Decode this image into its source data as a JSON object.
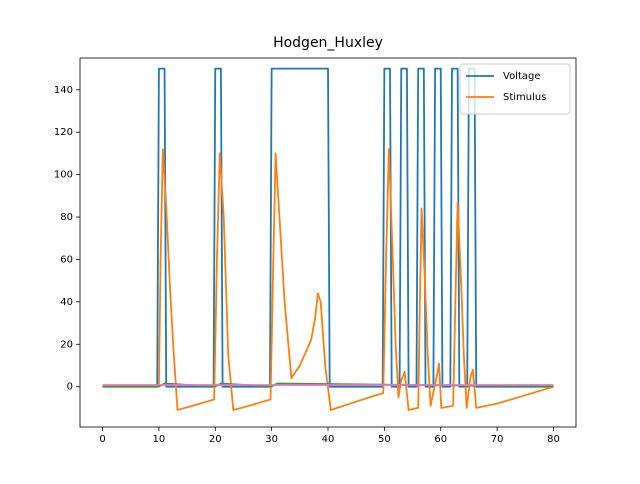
{
  "chart_data": {
    "type": "line",
    "title": "Hodgen_Huxley",
    "xlim": [
      -4,
      84
    ],
    "xticks": [
      0,
      10,
      20,
      30,
      40,
      50,
      60,
      70,
      80
    ],
    "ylim": [
      -19,
      155
    ],
    "yticks": [
      0,
      20,
      40,
      60,
      80,
      100,
      120,
      140
    ],
    "legend": "upper right",
    "series": [
      {
        "name": "Voltage",
        "color": "#1f77b4",
        "x": [
          0,
          9.7,
          10,
          11,
          11.3,
          19.7,
          20,
          21,
          21.3,
          29.7,
          30,
          40,
          40.3,
          49.7,
          50,
          51,
          51.3,
          52.7,
          53,
          54,
          54.3,
          55.7,
          56,
          57,
          57.3,
          58.7,
          59,
          60,
          60.3,
          61.7,
          62,
          63,
          63.3,
          64.7,
          65,
          66,
          66.3,
          80
        ],
        "values": [
          0,
          0,
          150,
          150,
          0,
          0,
          150,
          150,
          0,
          0,
          150,
          150,
          0,
          0,
          150,
          150,
          0,
          0,
          150,
          150,
          0,
          0,
          150,
          150,
          0,
          0,
          150,
          150,
          0,
          0,
          150,
          150,
          0,
          0,
          150,
          150,
          0,
          0
        ]
      },
      {
        "name": "Stimulus",
        "color": "#ff7f0e",
        "x": [
          0,
          10,
          10.3,
          10.7,
          11.3,
          12,
          12.6,
          13.3,
          16,
          19.8,
          20.3,
          20.8,
          21.5,
          22.3,
          23.2,
          26,
          29.8,
          30.3,
          30.7,
          31.5,
          32.3,
          33.5,
          35,
          37,
          37.7,
          38.2,
          38.7,
          39.5,
          40.5,
          45,
          49.8,
          50.3,
          50.8,
          51.5,
          52,
          52.5,
          53,
          53.6,
          54.3,
          56,
          56.3,
          56.6,
          57.2,
          57.7,
          58.2,
          59.3,
          59.7,
          60.1,
          62.2,
          62.6,
          63,
          63.6,
          64.1,
          64.6,
          65.3,
          65.7,
          66.3,
          70,
          75,
          80
        ],
        "values": [
          0,
          0,
          60,
          112,
          85,
          45,
          17,
          -11,
          -9,
          -6,
          60,
          110,
          80,
          15,
          -11,
          -9,
          -6,
          60,
          110,
          75,
          40,
          4,
          10,
          22,
          32,
          44,
          40,
          10,
          -11,
          -7,
          -3,
          60,
          112,
          60,
          20,
          -5,
          3,
          7,
          -11,
          -10,
          40,
          84,
          50,
          15,
          -9,
          5,
          11,
          -10,
          -9,
          40,
          87,
          50,
          15,
          -10,
          5,
          8,
          -10,
          -8,
          -4,
          0
        ]
      },
      {
        "color": "#2ca02c",
        "x": [
          0,
          10,
          11,
          20,
          21,
          30,
          31,
          80
        ],
        "values": [
          0.1,
          0.1,
          1.5,
          0.1,
          1.5,
          0.1,
          1.5,
          0.1
        ]
      },
      {
        "color": "#e377c2",
        "x": [
          0,
          80
        ],
        "values": [
          0.8,
          0.8
        ]
      }
    ]
  }
}
